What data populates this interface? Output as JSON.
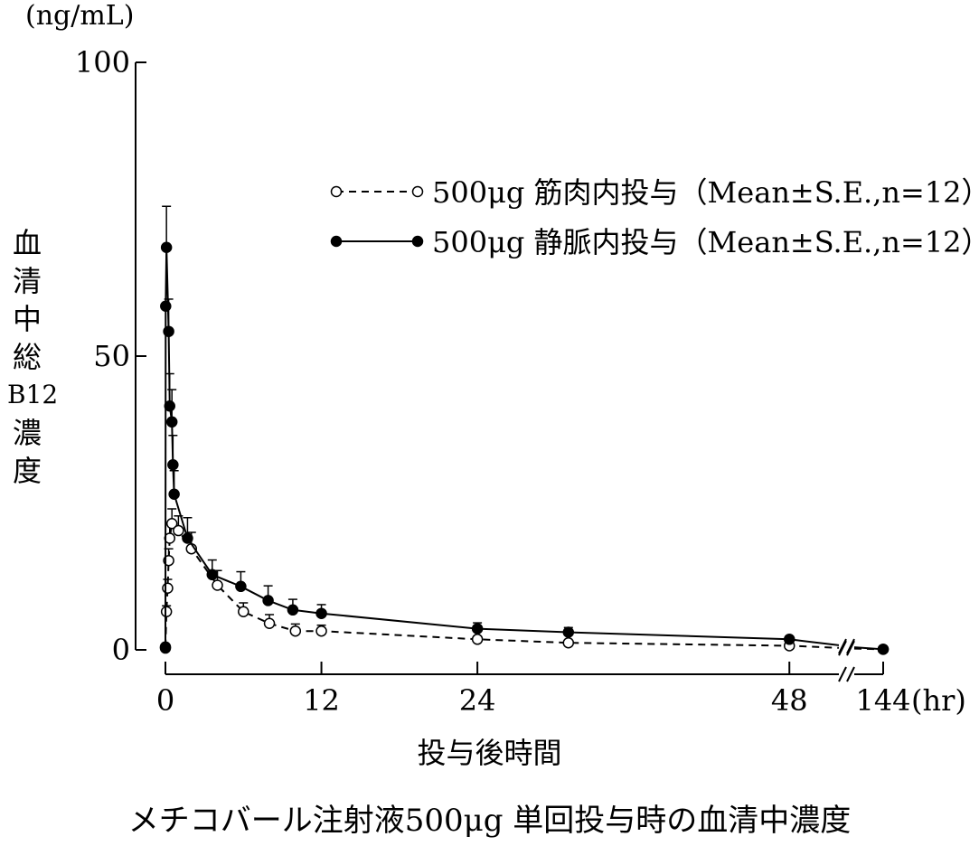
{
  "chart_data": {
    "type": "line",
    "title": "メチコバール注射液500μg 単回投与時の血清中濃度",
    "xlabel": "投与後時間",
    "x_unit": "(hr)",
    "ylabel_chars": [
      "血",
      "清",
      "中",
      "総",
      "B12",
      "濃",
      "度"
    ],
    "y_unit": "(ng/mL)",
    "ylim": [
      0,
      100
    ],
    "yticks": [
      0,
      50,
      100
    ],
    "xticks": [
      0,
      12,
      24,
      48,
      144
    ],
    "x_break": "48-144",
    "legend": [
      {
        "label": "500μg 筋肉内投与（Mean±S.E.,n=12）",
        "marker": "open-circle",
        "line": "dashed"
      },
      {
        "label": "500μg 静脈内投与（Mean±S.E.,n=12）",
        "marker": "filled-circle",
        "line": "solid"
      }
    ],
    "legend_position": "top-right",
    "series": [
      {
        "name": "500μg 筋肉内投与",
        "marker": "open",
        "x": [
          0,
          0.08,
          0.17,
          0.25,
          0.33,
          0.5,
          1,
          2,
          4,
          6,
          8,
          10,
          12,
          24,
          31,
          48,
          144
        ],
        "y": [
          0.5,
          6.5,
          10.5,
          15.2,
          19,
          21.5,
          20.3,
          17.2,
          11,
          6.5,
          4.5,
          3.2,
          3.2,
          1.8,
          1.2,
          0.7,
          0.1
        ],
        "err": [
          0,
          1,
          1.5,
          2,
          2.5,
          2.5,
          2.5,
          2.8,
          2.5,
          1.5,
          1.5,
          1.2,
          1.0,
          0.5,
          0.3,
          0.2,
          0
        ]
      },
      {
        "name": "500μg 静脈内投与",
        "marker": "filled",
        "x": [
          0,
          0.02,
          0.08,
          0.25,
          0.33,
          0.5,
          0.58,
          0.67,
          1.7,
          3.6,
          5.8,
          7.9,
          9.8,
          12,
          24,
          31,
          48,
          144
        ],
        "y": [
          0.3,
          58.5,
          68.5,
          54.2,
          41.5,
          38.8,
          31.5,
          26.5,
          19,
          12.8,
          10.8,
          8.4,
          6.8,
          6.2,
          3.6,
          3,
          1.8,
          0.1
        ],
        "err": [
          0,
          0,
          7,
          5.5,
          5.5,
          5.5,
          5,
          4,
          3.5,
          2.5,
          2.5,
          2.5,
          1.8,
          1.5,
          1,
          0.8,
          0.5,
          0
        ]
      }
    ]
  }
}
